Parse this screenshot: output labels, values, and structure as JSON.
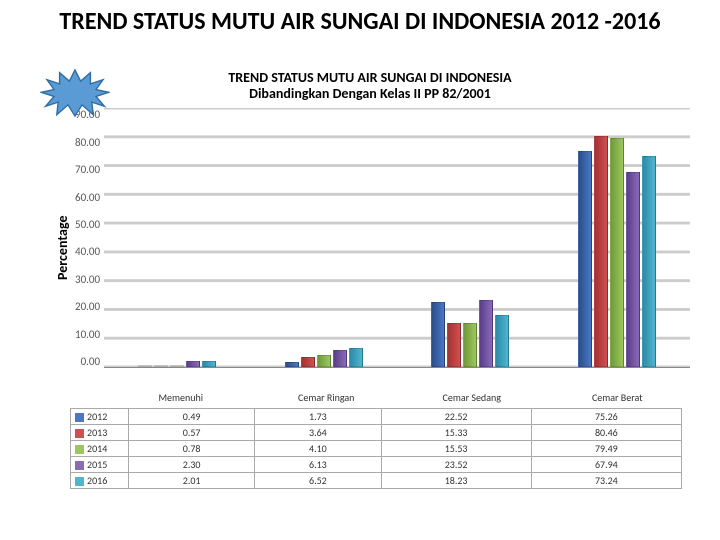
{
  "slide": {
    "title": "TREND STATUS MUTU AIR SUNGAI DI INDONESIA 2012 -2016",
    "title_fontsize": 24
  },
  "starburst": {
    "fill": "#5b9bd5",
    "stroke": "#2e6da4"
  },
  "chart": {
    "type": "bar",
    "title_line1": "TREND STATUS MUTU AIR SUNGAI DI INDONESIA",
    "title_line2": "Dibandingkan Dengan Kelas II PP 82/2001",
    "title_fontsize": 14,
    "ylabel": "Percentage",
    "ylim": [
      0,
      90
    ],
    "ytick_step": 10,
    "yticks": [
      "90.00",
      "80.00",
      "70.00",
      "60.00",
      "50.00",
      "40.00",
      "30.00",
      "20.00",
      "10.00",
      "0.00"
    ],
    "categories": [
      "Memenuhi",
      "Cemar Ringan",
      "Cemar Sedang",
      "Cemar Berat"
    ],
    "series": [
      {
        "name": "2012",
        "color1": "#2a4e8a",
        "color2": "#4a78c4",
        "values": [
          0.49,
          1.73,
          22.52,
          75.26
        ]
      },
      {
        "name": "2013",
        "color1": "#a43232",
        "color2": "#d05050",
        "values": [
          0.57,
          3.64,
          15.33,
          80.46
        ]
      },
      {
        "name": "2014",
        "color1": "#6e9a3a",
        "color2": "#9dc75e",
        "values": [
          0.78,
          4.1,
          15.53,
          79.49
        ]
      },
      {
        "name": "2015",
        "color1": "#5a3e8a",
        "color2": "#8a6ab8",
        "values": [
          2.3,
          6.13,
          23.52,
          67.94
        ]
      },
      {
        "name": "2016",
        "color1": "#2b8aa8",
        "color2": "#4fb5d0",
        "values": [
          2.01,
          6.52,
          18.23,
          73.24
        ]
      }
    ],
    "grid_color": "#cccccc",
    "background": "#ffffff"
  }
}
